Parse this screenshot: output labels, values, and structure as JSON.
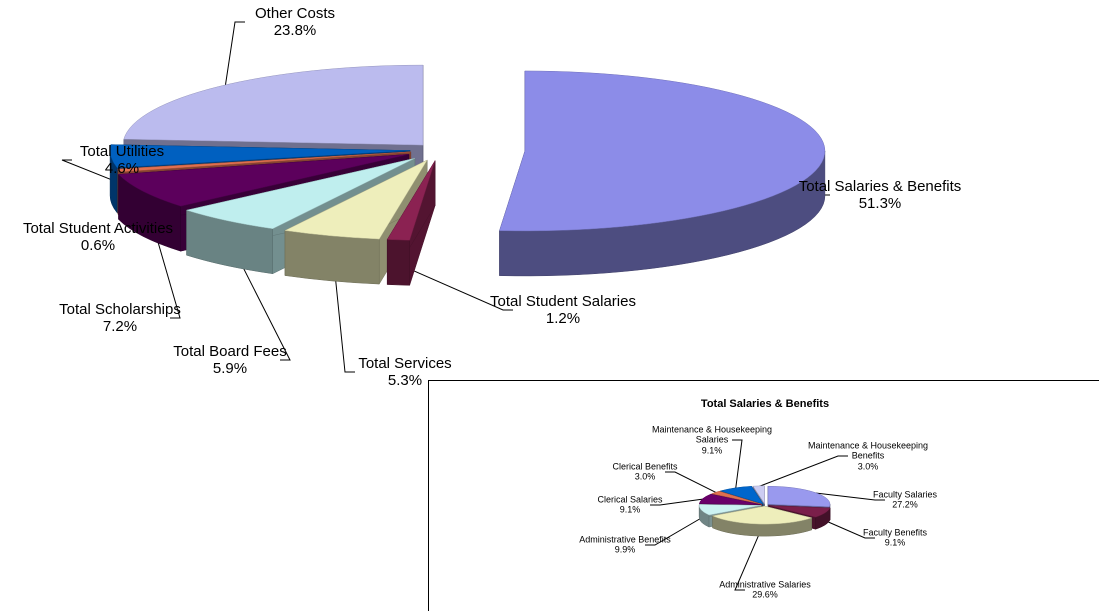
{
  "chart_data": [
    {
      "type": "pie",
      "categories": [
        "Total Salaries & Benefits",
        "Total Student Salaries",
        "Total Services",
        "Total Board Fees",
        "Total Scholarships",
        "Total Student Activities",
        "Total Utilities",
        "Other Costs"
      ],
      "values": [
        51.3,
        1.2,
        5.3,
        5.9,
        7.2,
        0.6,
        4.6,
        23.8
      ],
      "value_labels": [
        "51.3%",
        "1.2%",
        "5.3%",
        "5.9%",
        "7.2%",
        "0.6%",
        "4.6%",
        "23.8%"
      ],
      "colors": [
        "#8c8ce8",
        "#8b2252",
        "#eeeebb",
        "#bfeeee",
        "#5c005c",
        "#e07050",
        "#0060c0",
        "#bbbbee"
      ]
    },
    {
      "type": "pie",
      "title": "Total Salaries & Benefits",
      "categories": [
        "Faculty Salaries",
        "Faculty Benefits",
        "Administrative Salaries",
        "Administrative Benefits",
        "Clerical Salaries",
        "Clerical Benefits",
        "Maintenance & Housekeeping Salaries",
        "Maintenance & Housekeeping Benefits"
      ],
      "values": [
        27.2,
        9.1,
        29.6,
        9.9,
        9.1,
        3.0,
        9.1,
        3.0
      ],
      "value_labels": [
        "27.2%",
        "9.1%",
        "29.6%",
        "9.9%",
        "9.1%",
        "3.0%",
        "9.1%",
        "3.0%"
      ],
      "colors": [
        "#9999ee",
        "#7a1f4a",
        "#eeeebb",
        "#ccf2f2",
        "#6a006a",
        "#e07050",
        "#0066cc",
        "#ccccf2"
      ]
    }
  ]
}
